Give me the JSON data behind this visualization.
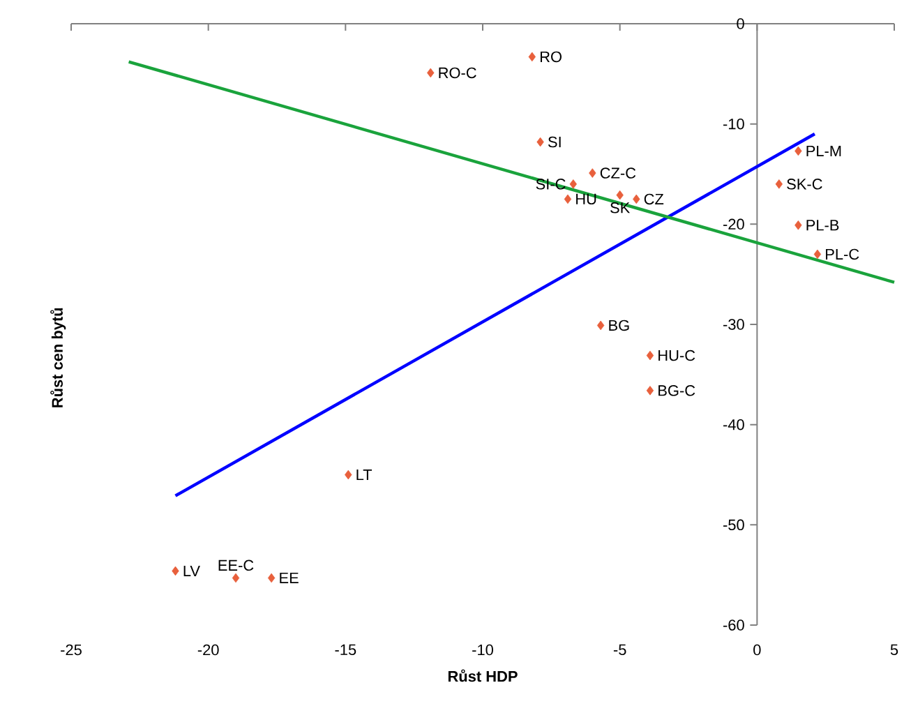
{
  "chart_data": {
    "type": "scatter",
    "xlabel": "Růst HDP",
    "ylabel": "Růst cen bytů",
    "xlim": [
      -25,
      5
    ],
    "ylim": [
      -60,
      0
    ],
    "xticks": [
      -25,
      -20,
      -15,
      -10,
      -5,
      0,
      5
    ],
    "yticks": [
      -60,
      -50,
      -40,
      -30,
      -20,
      -10,
      0
    ],
    "marker": "diamond",
    "series": [
      {
        "color": "#e8603c",
        "x": [
          -8.2,
          -11.9,
          -7.9,
          -6.0,
          -6.7,
          -6.9,
          -5.0,
          -4.4,
          1.5,
          0.8,
          1.5,
          2.2,
          -5.7,
          -3.9,
          -3.9,
          -14.9,
          -21.2,
          -19.0,
          -17.7
        ],
        "values": [
          -3.3,
          -4.9,
          -11.8,
          -14.9,
          -16.0,
          -17.5,
          -17.1,
          -17.5,
          -12.7,
          -16.0,
          -20.1,
          -23.0,
          -30.1,
          -33.1,
          -36.6,
          -45.0,
          -54.6,
          -55.3,
          -55.3
        ]
      },
      {
        "type": "line",
        "marker": "none",
        "color": "#0000ff",
        "x": [
          -21.2,
          2.1
        ],
        "values": [
          -47.1,
          -11.0
        ]
      },
      {
        "type": "line",
        "marker": "none",
        "color": "#1aa33c",
        "x": [
          -22.9,
          5
        ],
        "values": [
          -3.8,
          -25.8
        ]
      }
    ],
    "annotations": [
      {
        "text": "RO",
        "x": -8.2,
        "y": -3.3
      },
      {
        "text": "RO-C",
        "x": -11.9,
        "y": -4.9
      },
      {
        "text": "SI",
        "x": -7.9,
        "y": -11.8
      },
      {
        "text": "CZ-C",
        "x": -6.0,
        "y": -14.9
      },
      {
        "text": "SI-C",
        "x": -6.7,
        "y": -16.0
      },
      {
        "text": "HU",
        "x": -6.9,
        "y": -17.5
      },
      {
        "text": "SK",
        "x": -5.0,
        "y": -17.1
      },
      {
        "text": "CZ",
        "x": -4.4,
        "y": -17.5
      },
      {
        "text": "PL-M",
        "x": 1.5,
        "y": -12.7
      },
      {
        "text": "SK-C",
        "x": 0.8,
        "y": -16.0
      },
      {
        "text": "PL-B",
        "x": 1.5,
        "y": -20.1
      },
      {
        "text": "PL-C",
        "x": 2.2,
        "y": -23.0
      },
      {
        "text": "BG",
        "x": -5.7,
        "y": -30.1
      },
      {
        "text": "HU-C",
        "x": -3.9,
        "y": -33.1
      },
      {
        "text": "BG-C",
        "x": -3.9,
        "y": -36.6
      },
      {
        "text": "LT",
        "x": -14.9,
        "y": -45.0
      },
      {
        "text": "LV",
        "x": -21.2,
        "y": -54.6
      },
      {
        "text": "EE-C",
        "x": -19.0,
        "y": -55.3
      },
      {
        "text": "EE",
        "x": -17.7,
        "y": -55.3
      }
    ]
  }
}
